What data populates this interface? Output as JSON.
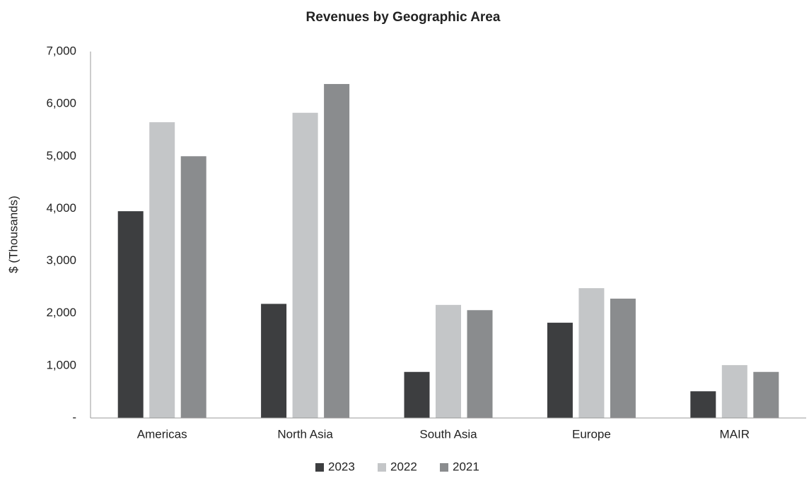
{
  "chart_data": {
    "type": "bar",
    "title": "Revenues by Geographic Area",
    "y_label": "$ (Thousands)",
    "categories": [
      "Americas",
      "North Asia",
      "South Asia",
      "Europe",
      "MAIR"
    ],
    "series": [
      {
        "name": "2023",
        "color": "#3d3e40",
        "values": [
          3950,
          2180,
          880,
          1820,
          510
        ]
      },
      {
        "name": "2022",
        "color": "#c4c6c8",
        "values": [
          5650,
          5830,
          2160,
          2480,
          1010
        ]
      },
      {
        "name": "2021",
        "color": "#8a8c8e",
        "values": [
          5000,
          6380,
          2060,
          2280,
          880
        ]
      }
    ],
    "ylim": [
      0,
      7000
    ],
    "yticks": [
      {
        "value": 0,
        "label": "-"
      },
      {
        "value": 1000,
        "label": "1,000"
      },
      {
        "value": 2000,
        "label": "2,000"
      },
      {
        "value": 3000,
        "label": "3,000"
      },
      {
        "value": 4000,
        "label": "4,000"
      },
      {
        "value": 5000,
        "label": "5,000"
      },
      {
        "value": 6000,
        "label": "6,000"
      },
      {
        "value": 7000,
        "label": "7,000"
      }
    ],
    "grid": false,
    "legend": "bottom"
  }
}
